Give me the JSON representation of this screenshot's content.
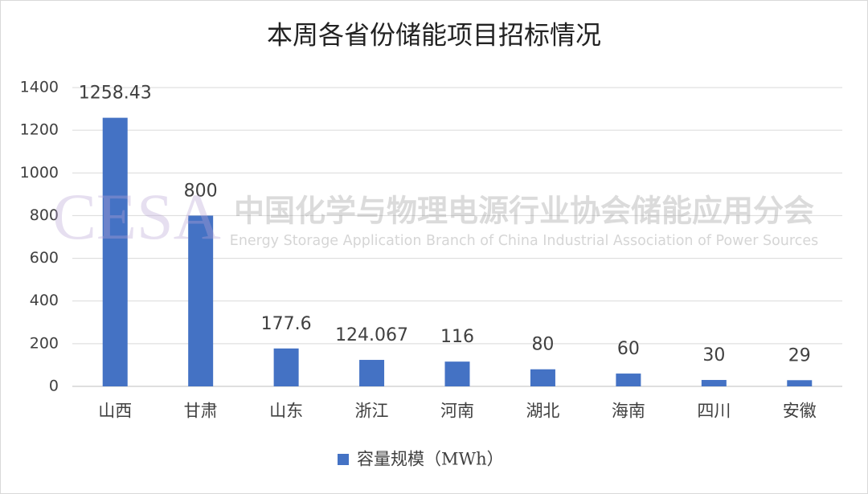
{
  "chart_data": {
    "type": "bar",
    "title": "本周各省份储能项目招标情况",
    "categories": [
      "山西",
      "甘肃",
      "山东",
      "浙江",
      "河南",
      "湖北",
      "海南",
      "四川",
      "安徽"
    ],
    "series": [
      {
        "name": "容量规模（MWh）",
        "color": "#4472c4",
        "values": [
          1258.43,
          800,
          177.6,
          124.067,
          116,
          80,
          60,
          30,
          29
        ]
      }
    ],
    "ylim": [
      0,
      1400
    ],
    "yticks": [
      0,
      200,
      400,
      600,
      800,
      1000,
      1200,
      1400
    ],
    "grid": true,
    "legend": "bottom",
    "watermark": [
      "CESA",
      "中国化学与物理电源行业协会储能应用分会",
      "Energy Storage Application Branch of China Industrial Association of Power Sources"
    ]
  }
}
